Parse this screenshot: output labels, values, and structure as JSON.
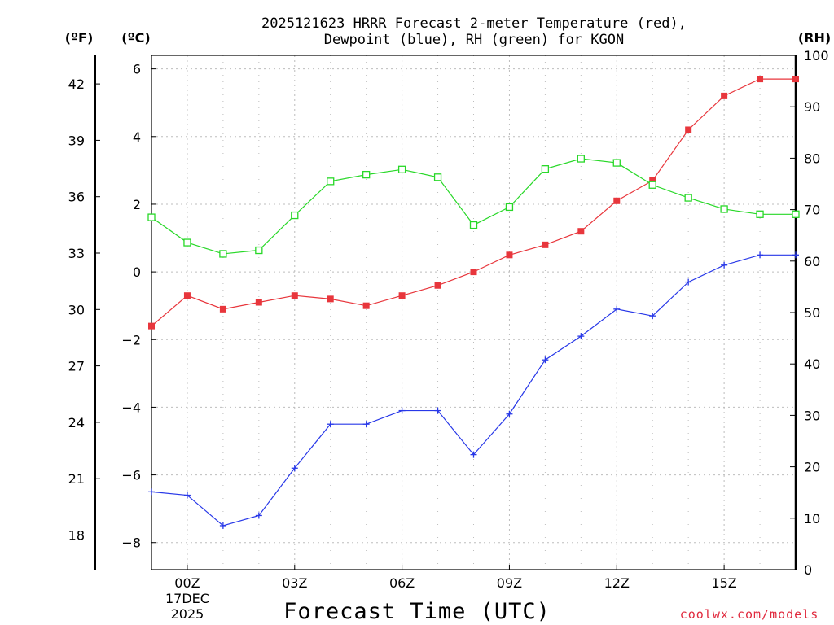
{
  "chart_data": {
    "type": "line",
    "title_line1": "2025121623 HRRR Forecast 2-meter Temperature (red),",
    "title_line2": "Dewpoint (blue), RH (green) for KGON",
    "xlabel": "Forecast Time (UTC)",
    "credit": "coolwx.com/models",
    "unit_f": "(ºF)",
    "unit_c": "(ºC)",
    "unit_rh": "(RH)",
    "x_hours": [
      -1,
      0,
      1,
      2,
      3,
      4,
      5,
      6,
      7,
      8,
      9,
      10,
      11,
      12,
      13,
      14,
      15,
      16,
      17
    ],
    "xlim": [
      -1,
      17
    ],
    "x_ticks": [
      {
        "hour": 0,
        "label": "00Z",
        "sub1": "17DEC",
        "sub2": "2025"
      },
      {
        "hour": 3,
        "label": "03Z"
      },
      {
        "hour": 6,
        "label": "06Z"
      },
      {
        "hour": 9,
        "label": "09Z"
      },
      {
        "hour": 12,
        "label": "12Z"
      },
      {
        "hour": 15,
        "label": "15Z"
      }
    ],
    "ylim_c": [
      -8.8,
      6.4
    ],
    "y_ticks_c": [
      {
        "v": 6,
        "label": "6"
      },
      {
        "v": 4,
        "label": "4"
      },
      {
        "v": 2,
        "label": "2"
      },
      {
        "v": 0,
        "label": "0"
      },
      {
        "v": -2,
        "label": "−2"
      },
      {
        "v": -4,
        "label": "−4"
      },
      {
        "v": -6,
        "label": "−6"
      },
      {
        "v": -8,
        "label": "−8"
      }
    ],
    "y_ticks_f": [
      "18",
      "21",
      "24",
      "27",
      "30",
      "33",
      "36",
      "39",
      "42"
    ],
    "ylim_rh": [
      0,
      100
    ],
    "y_ticks_rh": [
      "0",
      "10",
      "20",
      "30",
      "40",
      "50",
      "60",
      "70",
      "80",
      "90",
      "100"
    ],
    "series": [
      {
        "name": "2-meter Temperature",
        "color": "#e8363c",
        "axis": "c",
        "marker": "square-filled",
        "values": [
          -1.6,
          -0.7,
          -1.1,
          -0.9,
          -0.7,
          -0.8,
          -1.0,
          -0.7,
          -0.4,
          0.0,
          0.5,
          0.8,
          1.2,
          2.1,
          2.7,
          4.2,
          5.2,
          5.7,
          5.7
        ]
      },
      {
        "name": "Dewpoint",
        "color": "#2838e8",
        "axis": "c",
        "marker": "plus",
        "values": [
          -6.5,
          -6.6,
          -7.5,
          -7.2,
          -5.8,
          -4.5,
          -4.5,
          -4.1,
          -4.1,
          -5.4,
          -4.2,
          -2.6,
          -1.9,
          -1.1,
          -1.3,
          -0.3,
          0.2,
          0.5,
          0.5
        ]
      },
      {
        "name": "RH",
        "color": "#28d828",
        "axis": "rh",
        "marker": "square-open",
        "values": [
          68.5,
          63.6,
          61.4,
          62.1,
          68.9,
          75.5,
          76.8,
          77.8,
          76.3,
          67.0,
          70.5,
          77.9,
          79.9,
          79.1,
          74.8,
          72.3,
          70.1,
          69.1,
          69.1
        ]
      }
    ]
  }
}
